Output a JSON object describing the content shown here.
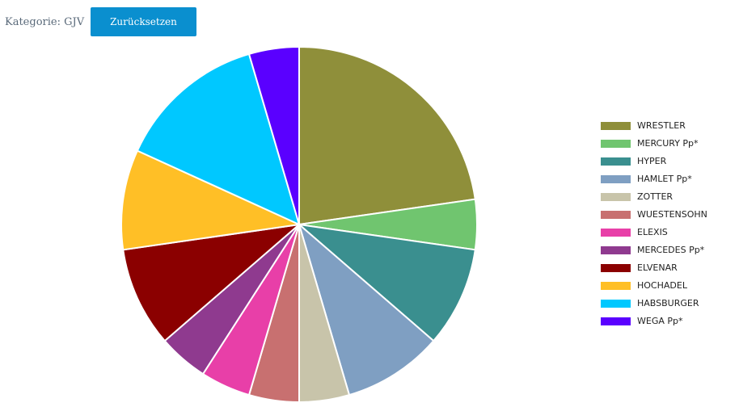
{
  "header": {
    "label": "Kategorie: GJV",
    "button": "Zurücksetzen"
  },
  "chart_data": {
    "type": "pie",
    "categories": [
      "WRESTLER",
      "MERCURY Pp*",
      "HYPER",
      "HAMLET Pp*",
      "ZOTTER",
      "WUESTENSOHN",
      "ELEXIS",
      "MERCEDES Pp*",
      "ELVENAR",
      "HOCHADEL",
      "HABSBURGER",
      "WEGA Pp*"
    ],
    "values": [
      5,
      1,
      2,
      2,
      1,
      1,
      1,
      1,
      2,
      2,
      3,
      1
    ],
    "colors": [
      "#8f8f3a",
      "#70c56f",
      "#3a8f8f",
      "#7f9fc2",
      "#c8c4aa",
      "#c87070",
      "#e83fa8",
      "#8f3a8f",
      "#8b0000",
      "#ffbf26",
      "#00c8ff",
      "#5a00ff"
    ],
    "legend": "right"
  }
}
